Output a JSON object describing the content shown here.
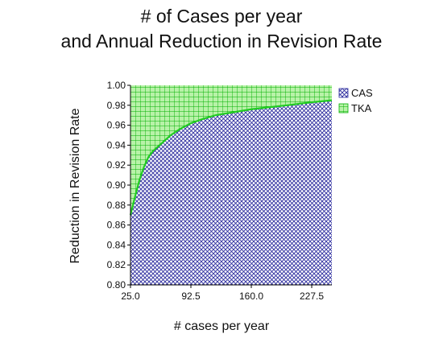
{
  "title": {
    "line1": "# of Cases per year",
    "line2": "and Annual Reduction in Revision Rate"
  },
  "colors": {
    "cas_pattern": "#2b2b9e",
    "tka_pattern": "#00b000",
    "tka_fill": "#b8f2a8",
    "tka_line": "#22cc22",
    "axis": "#000000"
  },
  "chart_data": {
    "type": "area",
    "title": "# of Cases per year and Annual Reduction in Revision Rate",
    "xlabel": "# cases per year",
    "ylabel": "Reduction in Revision Rate",
    "xlim": [
      25,
      250
    ],
    "ylim": [
      0.8,
      1.0
    ],
    "x_ticks": [
      25,
      92.5,
      160,
      227.5
    ],
    "x_tick_labels": [
      "25.0",
      "92.5",
      "160.0",
      "227.5"
    ],
    "y_ticks": [
      0.8,
      0.82,
      0.84,
      0.86,
      0.88,
      0.9,
      0.92,
      0.94,
      0.96,
      0.98,
      1.0
    ],
    "y_tick_labels": [
      "0.80",
      "0.82",
      "0.84",
      "0.86",
      "0.88",
      "0.90",
      "0.92",
      "0.94",
      "0.96",
      "0.98",
      "1.00"
    ],
    "legend": "right",
    "grid": false,
    "x": [
      25,
      30,
      35,
      40,
      45,
      50,
      60,
      70,
      80,
      92.5,
      105,
      120,
      140,
      160,
      180,
      200,
      227.5,
      250
    ],
    "series": [
      {
        "name": "CAS",
        "pattern": "crosshatch",
        "values": [
          0.87,
          0.888,
          0.905,
          0.918,
          0.928,
          0.934,
          0.942,
          0.95,
          0.956,
          0.962,
          0.966,
          0.97,
          0.973,
          0.976,
          0.978,
          0.98,
          0.983,
          0.985
        ]
      },
      {
        "name": "TKA",
        "pattern": "grid",
        "values": [
          1.0,
          1.0,
          1.0,
          1.0,
          1.0,
          1.0,
          1.0,
          1.0,
          1.0,
          1.0,
          1.0,
          1.0,
          1.0,
          1.0,
          1.0,
          1.0,
          1.0,
          1.0
        ]
      }
    ]
  }
}
